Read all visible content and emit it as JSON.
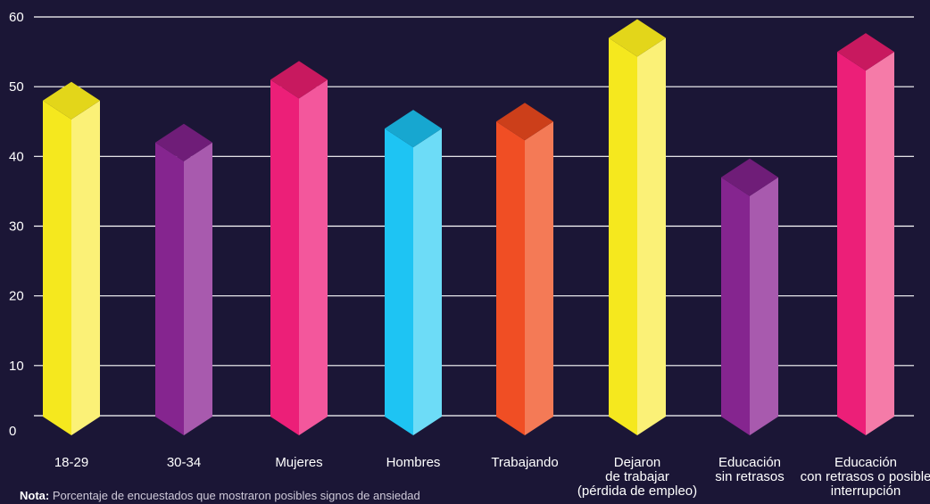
{
  "chart_data": {
    "type": "bar",
    "categories": [
      [
        "18-29"
      ],
      [
        "30-34"
      ],
      [
        "Mujeres"
      ],
      [
        "Hombres"
      ],
      [
        "Trabajando"
      ],
      [
        "Dejaron",
        "de trabajar",
        "(pérdida de empleo)"
      ],
      [
        "Educación",
        "sin retrasos"
      ],
      [
        "Educación",
        "con retrasos o posible",
        "interrupción"
      ]
    ],
    "values": [
      48,
      42,
      51,
      44,
      45,
      57,
      37,
      55
    ],
    "colors": [
      {
        "front": "#f5e81e",
        "side": "#fbf177",
        "top": "#e3d61a"
      },
      {
        "front": "#85258f",
        "side": "#a85aae",
        "top": "#6f1d78"
      },
      {
        "front": "#ec1f78",
        "side": "#f3579c",
        "top": "#c8195f"
      },
      {
        "front": "#1ec4f3",
        "side": "#6ddcf7",
        "top": "#17a7d0"
      },
      {
        "front": "#f04e24",
        "side": "#f47a56",
        "top": "#cc3f1a"
      },
      {
        "front": "#f5e81e",
        "side": "#fbf177",
        "top": "#e3d61a"
      },
      {
        "front": "#85258f",
        "side": "#a85aae",
        "top": "#6f1d78"
      },
      {
        "front": "#ec1f78",
        "side": "#f57ba8",
        "top": "#c8195f"
      }
    ],
    "ylim": [
      0,
      60
    ],
    "yticks": [
      0,
      10,
      20,
      30,
      40,
      50,
      60
    ],
    "grid": true,
    "background": "#1b1636"
  },
  "note": {
    "label": "Nota:",
    "text": " Porcentaje de encuestados que mostraron posibles signos de ansiedad"
  }
}
